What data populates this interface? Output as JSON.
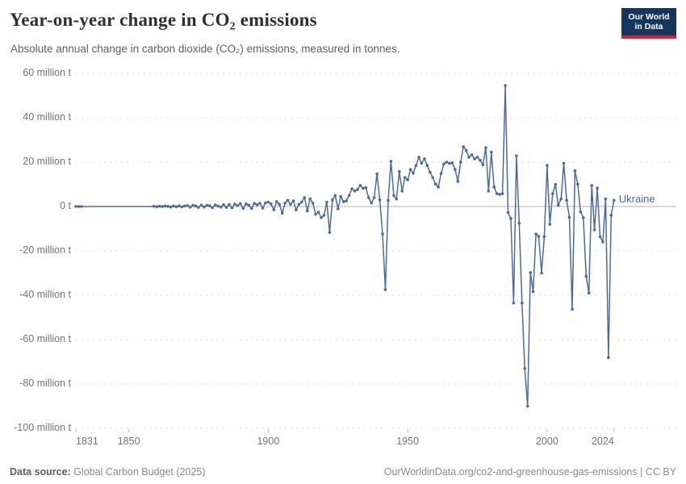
{
  "header": {
    "title": "Year-on-year change in CO₂ emissions",
    "subtitle": "Absolute annual change in carbon dioxide (CO₂) emissions, measured in tonnes."
  },
  "logo": {
    "line1": "Our World",
    "line2": "in Data",
    "bg_color": "#16365c",
    "stripe_color": "#d8232f"
  },
  "entity_label": {
    "text": "Ukraine",
    "color": "#4C6B9C"
  },
  "footer": {
    "source_label": "Data source:",
    "source_value": " Global Carbon Budget (2025)",
    "right_text": "OurWorldinData.org/co2-and-greenhouse-gas-emissions | CC BY"
  },
  "chart_data": {
    "type": "line",
    "title": "Year-on-year change in CO₂ emissions",
    "unit": "million tonnes",
    "xlim": [
      1831,
      2024
    ],
    "ylim": [
      -100,
      60
    ],
    "grid": "horizontal dashed, solid zero line",
    "legend_position": "end-of-line label",
    "x_ticks": [
      1831,
      1850,
      1900,
      1950,
      2000,
      2024
    ],
    "y_ticks": [
      {
        "value": 60,
        "label": "60 million t"
      },
      {
        "value": 40,
        "label": "40 million t"
      },
      {
        "value": 20,
        "label": "20 million t"
      },
      {
        "value": 0,
        "label": "0 t"
      },
      {
        "value": -20,
        "label": "-20 million t"
      },
      {
        "value": -40,
        "label": "-40 million t"
      },
      {
        "value": -60,
        "label": "-60 million t"
      },
      {
        "value": -80,
        "label": "-80 million t"
      },
      {
        "value": -100,
        "label": "-100 million t"
      }
    ],
    "marker_hidden_range": [
      1834,
      1858
    ],
    "series": [
      {
        "name": "Ukraine",
        "color": "#4C6B9C",
        "start_year": 1831,
        "end_year": 2024,
        "values": [
          0,
          0,
          0,
          0,
          0,
          0,
          0,
          0,
          0,
          0,
          0,
          0,
          0,
          0,
          0,
          0,
          0,
          0,
          0,
          0,
          0,
          0,
          0,
          0,
          0,
          0,
          0,
          0,
          0.1,
          -0.1,
          0.15,
          -0.05,
          0.2,
          0.1,
          -0.2,
          0.25,
          -0.1,
          0.3,
          -0.15,
          0.2,
          0.4,
          -0.3,
          0.5,
          0.2,
          -0.4,
          0.6,
          -0.2,
          0.5,
          0.3,
          -0.5,
          0.7,
          0.2,
          -0.3,
          0.8,
          -0.4,
          0.9,
          -0.6,
          1.1,
          0.4,
          1.3,
          -0.8,
          1.2,
          0.6,
          -0.9,
          1.4,
          0.8,
          1.5,
          -0.7,
          1.6,
          2.0,
          1.2,
          -1.5,
          2.2,
          1.0,
          -3.0,
          1.5,
          2.8,
          1.0,
          2.5,
          -1.5,
          1.0,
          2.0,
          4.0,
          -2.0,
          3.5,
          1.5,
          -3.5,
          -2.5,
          -5.0,
          -4.0,
          2.0,
          -11.7,
          3.0,
          5.0,
          -1.0,
          4.5,
          2.2,
          2.5,
          5.0,
          8.0,
          7.0,
          7.6,
          9.5,
          8.2,
          8.5,
          4.0,
          1.6,
          4.0,
          14.7,
          3.0,
          -12.4,
          -37.5,
          2.8,
          20.4,
          5.0,
          3.4,
          15.8,
          7.0,
          13.1,
          12.0,
          16.7,
          15.0,
          18.5,
          22.2,
          19.5,
          21.5,
          18.5,
          15.5,
          13.1,
          10.1,
          8.8,
          14.9,
          19.2,
          20.0,
          19.5,
          19.7,
          16.7,
          11.3,
          20.0,
          27.0,
          25.2,
          22.2,
          23.3,
          21.5,
          22.2,
          20.8,
          18.8,
          26.5,
          7.0,
          24.5,
          8.8,
          5.8,
          5.5,
          5.8,
          54.5,
          -2.7,
          -5.4,
          -43.5,
          22.8,
          -7.5,
          -43.5,
          -73.0,
          -90.0,
          -29.8,
          -38.4,
          -12.4,
          -13.5,
          -30.0,
          -13.6,
          18.5,
          -8.0,
          5.8,
          10.0,
          0.5,
          3.4,
          19.5,
          2.8,
          -4.8,
          -46.3,
          16.1,
          10.1,
          -2.4,
          -5.0,
          -31.5,
          -39.0,
          9.5,
          -10.5,
          8.3,
          -13.6,
          -16.0,
          3.4,
          -68.1,
          -3.9,
          2.8
        ]
      }
    ]
  }
}
